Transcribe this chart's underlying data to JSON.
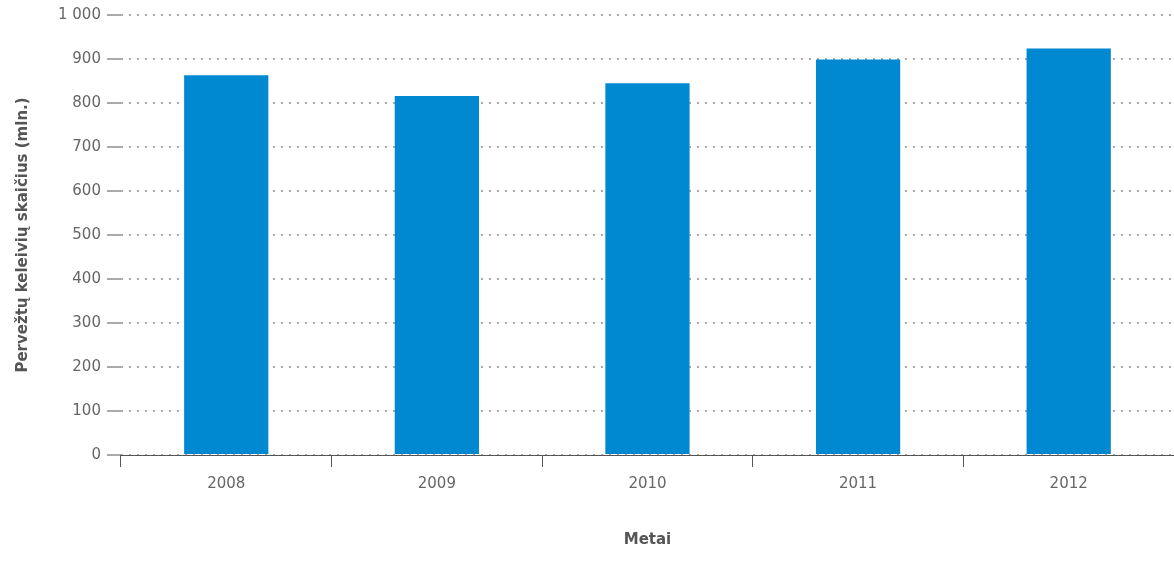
{
  "chart_data": {
    "type": "bar",
    "xlabel": "Metai",
    "ylabel": "Pervežtų keleivių skaičius (mln.)",
    "categories": [
      "2008",
      "2009",
      "2010",
      "2011",
      "2012"
    ],
    "values": [
      863,
      816,
      845,
      899,
      924
    ],
    "color": "#0088d1",
    "ylim": [
      0,
      1000
    ],
    "yticks": [
      0,
      100,
      200,
      300,
      400,
      500,
      600,
      700,
      800,
      900,
      {
        "value": 1000,
        "label": "1 000"
      }
    ],
    "grid": "y",
    "legend": false
  }
}
